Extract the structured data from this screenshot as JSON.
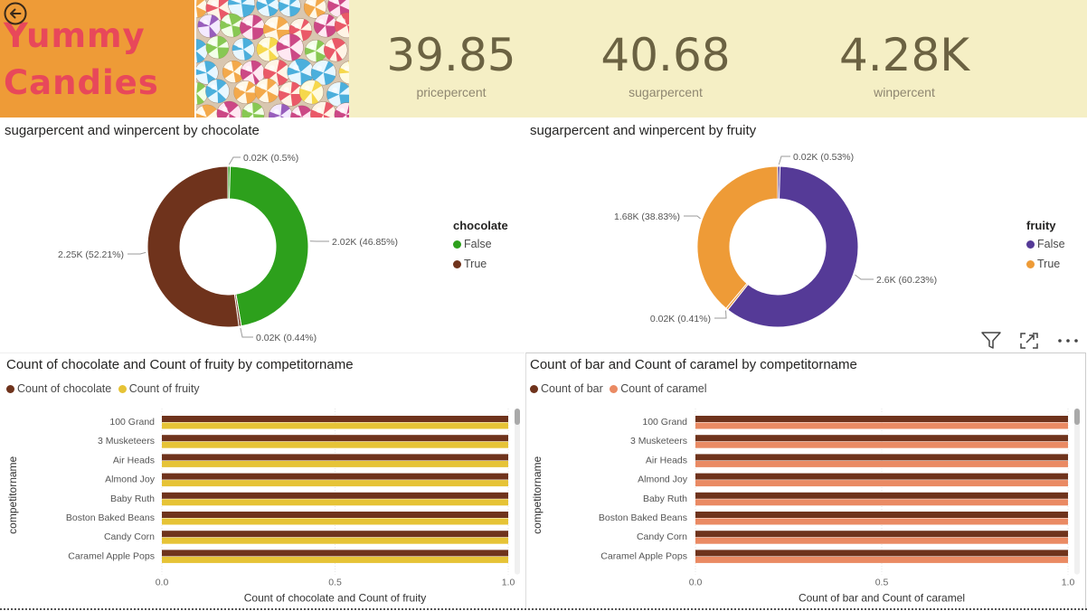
{
  "header": {
    "title_line1": "Yummy",
    "title_line2": "Candies",
    "back_icon": "back-arrow-circle-icon"
  },
  "kpis": [
    {
      "value": "39.85",
      "label": "pricepercent"
    },
    {
      "value": "40.68",
      "label": "sugarpercent"
    },
    {
      "value": "4.28K",
      "label": "winpercent"
    }
  ],
  "colors": {
    "chocolate_false": "#2da01c",
    "chocolate_true": "#6f331c",
    "fruity_false": "#553a97",
    "fruity_true": "#ee9b37",
    "count_chocolate": "#6f331c",
    "count_fruity": "#e6c336",
    "count_bar": "#6f331c",
    "count_caramel": "#ea8a63"
  },
  "visual_header_icons": [
    "filter-icon",
    "focus-mode-icon",
    "more-options-icon"
  ],
  "chart_data": [
    {
      "type": "pie",
      "title": "sugarpercent and winpercent by chocolate",
      "legend_title": "chocolate",
      "legend_position": "right",
      "slices": [
        {
          "name": "False",
          "measure": "sugarpercent",
          "value": 0.02,
          "label": "0.02K (0.5%)"
        },
        {
          "name": "False",
          "measure": "winpercent",
          "value": 2.02,
          "label": "2.02K (46.85%)"
        },
        {
          "name": "True",
          "measure": "sugarpercent",
          "value": 0.02,
          "label": "0.02K (0.44%)"
        },
        {
          "name": "True",
          "measure": "winpercent",
          "value": 2.25,
          "label": "2.25K (52.21%)"
        }
      ],
      "legend": [
        "False",
        "True"
      ]
    },
    {
      "type": "pie",
      "title": "sugarpercent and winpercent by fruity",
      "legend_title": "fruity",
      "legend_position": "right",
      "slices": [
        {
          "name": "False",
          "measure": "sugarpercent",
          "value": 0.02,
          "label": "0.02K (0.53%)"
        },
        {
          "name": "False",
          "measure": "winpercent",
          "value": 2.6,
          "label": "2.6K (60.23%)"
        },
        {
          "name": "True",
          "measure": "sugarpercent",
          "value": 0.02,
          "label": "0.02K (0.41%)"
        },
        {
          "name": "True",
          "measure": "winpercent",
          "value": 1.68,
          "label": "1.68K (38.83%)"
        }
      ],
      "legend": [
        "False",
        "True"
      ]
    },
    {
      "type": "bar",
      "orientation": "horizontal",
      "title": "Count of chocolate and Count of fruity by competitorname",
      "legend_position": "top-left",
      "xlabel": "Count of chocolate and Count of fruity",
      "ylabel": "competitorname",
      "xlim": [
        0,
        1.0
      ],
      "x_ticks": [
        "0.0",
        "0.5",
        "1.0"
      ],
      "categories": [
        "100 Grand",
        "3 Musketeers",
        "Air Heads",
        "Almond Joy",
        "Baby Ruth",
        "Boston Baked Beans",
        "Candy Corn",
        "Caramel Apple Pops"
      ],
      "series": [
        {
          "name": "Count of chocolate",
          "values": [
            1,
            1,
            1,
            1,
            1,
            1,
            1,
            1
          ]
        },
        {
          "name": "Count of fruity",
          "values": [
            1,
            1,
            1,
            1,
            1,
            1,
            1,
            1
          ]
        }
      ]
    },
    {
      "type": "bar",
      "orientation": "horizontal",
      "title": "Count of bar and Count of caramel by competitorname",
      "legend_position": "top-left",
      "xlabel": "Count of bar and Count of caramel",
      "ylabel": "competitorname",
      "xlim": [
        0,
        1.0
      ],
      "x_ticks": [
        "0.0",
        "0.5",
        "1.0"
      ],
      "categories": [
        "100 Grand",
        "3 Musketeers",
        "Air Heads",
        "Almond Joy",
        "Baby Ruth",
        "Boston Baked Beans",
        "Candy Corn",
        "Caramel Apple Pops"
      ],
      "series": [
        {
          "name": "Count of bar",
          "values": [
            1,
            1,
            1,
            1,
            1,
            1,
            1,
            1
          ]
        },
        {
          "name": "Count of caramel",
          "values": [
            1,
            1,
            1,
            1,
            1,
            1,
            1,
            1
          ]
        }
      ]
    }
  ]
}
